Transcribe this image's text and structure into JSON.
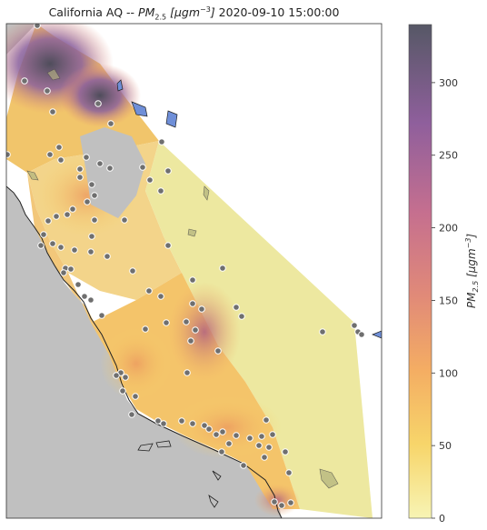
{
  "title": {
    "prefix": "California AQ -- ",
    "pm_symbol": "PM",
    "pm_sub": "2.5",
    "unit_open": " [μgm",
    "unit_sup": "−3",
    "unit_close": "]",
    "timestamp": " 2020-09-10 15:00:00"
  },
  "colorbar": {
    "label": "PM2.5 [μgm−3]",
    "min": 0,
    "max": 340,
    "ticks": [
      0,
      50,
      100,
      150,
      200,
      250,
      300
    ],
    "stops": [
      "#f7f4b4",
      "#f7d56a",
      "#f4ad63",
      "#e18a78",
      "#c56f8f",
      "#8f5f9c",
      "#565866"
    ]
  },
  "map": {
    "background_color": "#c0c0c0",
    "land_color": "#ffffff",
    "water_color": "#6f8fd8",
    "station_color": "#6f6f6f",
    "station_edge": "#ffffff"
  }
}
